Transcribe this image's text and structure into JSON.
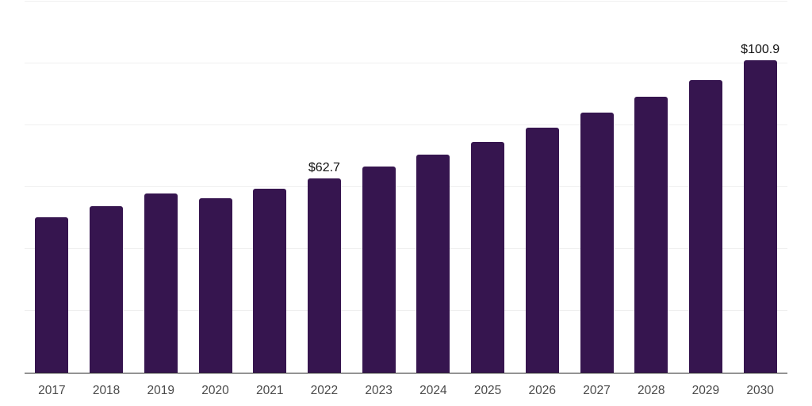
{
  "chart_data": {
    "type": "bar",
    "title": "",
    "xlabel": "",
    "ylabel": "",
    "categories": [
      "2017",
      "2018",
      "2019",
      "2020",
      "2021",
      "2022",
      "2023",
      "2024",
      "2025",
      "2026",
      "2027",
      "2028",
      "2029",
      "2030"
    ],
    "values": [
      50.1,
      53.7,
      57.8,
      56.3,
      59.3,
      62.7,
      66.4,
      70.3,
      74.4,
      78.9,
      83.8,
      89.0,
      94.5,
      100.9
    ],
    "data_labels": [
      {
        "category": "2022",
        "text": "$62.7"
      },
      {
        "category": "2030",
        "text": "$100.9"
      }
    ],
    "ylim": [
      0,
      120
    ],
    "grid_step": 20,
    "grid": true,
    "legend": "none",
    "yaxis_labels_visible": false,
    "colors": {
      "bar": "#36154F",
      "gridline": "#efefef",
      "axis_line": "#262626",
      "tick_label": "#4a4a4a",
      "data_label": "#111111",
      "background": "#ffffff"
    }
  }
}
